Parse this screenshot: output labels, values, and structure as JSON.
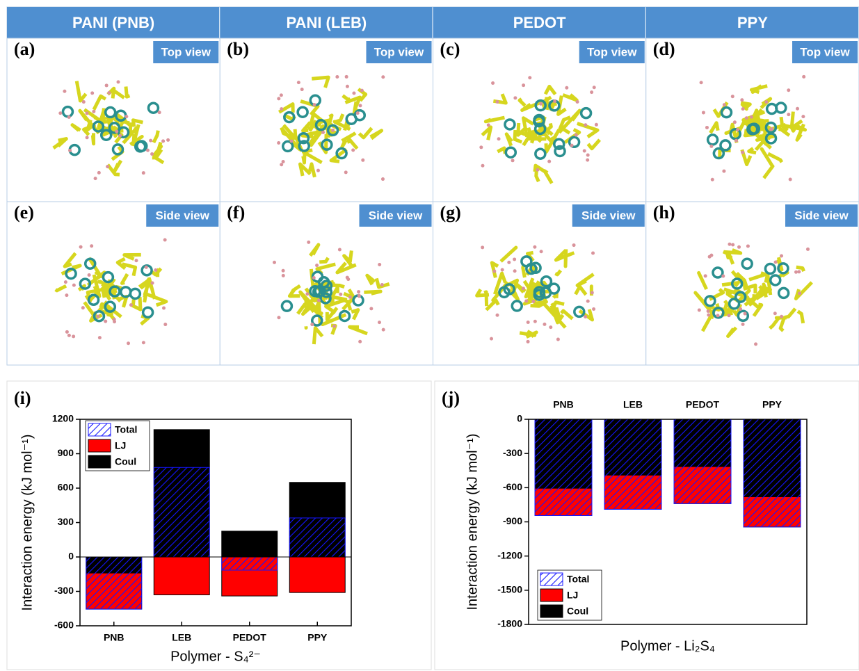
{
  "header": {
    "columns": [
      "PANI (PNB)",
      "PANI (LEB)",
      "PEDOT",
      "PPY"
    ],
    "panels": [
      {
        "label": "(a)",
        "view": "Top view"
      },
      {
        "label": "(b)",
        "view": "Top view"
      },
      {
        "label": "(c)",
        "view": "Top view"
      },
      {
        "label": "(d)",
        "view": "Top view"
      },
      {
        "label": "(e)",
        "view": "Side view"
      },
      {
        "label": "(f)",
        "view": "Side view"
      },
      {
        "label": "(g)",
        "view": "Side view"
      },
      {
        "label": "(h)",
        "view": "Side view"
      }
    ]
  },
  "chart_data": [
    {
      "type": "bar",
      "panel": "(i)",
      "ylabel": "Interaction energy (kJ mol⁻¹)",
      "xlabel": "Polymer - S₄²⁻",
      "categories": [
        "PNB",
        "LEB",
        "PEDOT",
        "PPY"
      ],
      "category_axis": "bottom",
      "legend": "top-left",
      "ylim": [
        -600,
        1200
      ],
      "yticks": [
        -600,
        -300,
        0,
        300,
        600,
        900,
        1200
      ],
      "series": [
        {
          "name": "Total",
          "color": "#1515ff",
          "pattern": "hatch",
          "values": [
            -455,
            780,
            -115,
            340
          ]
        },
        {
          "name": "LJ",
          "color": "#ff0000",
          "values": [
            -315,
            -330,
            -340,
            -310
          ]
        },
        {
          "name": "Coul",
          "color": "#000000",
          "values": [
            -140,
            1110,
            225,
            650
          ]
        }
      ]
    },
    {
      "type": "bar",
      "panel": "(j)",
      "ylabel": "Interaction energy (kJ mol⁻¹)",
      "xlabel": "Polymer - Li₂S₄",
      "categories": [
        "PNB",
        "LEB",
        "PEDOT",
        "PPY"
      ],
      "category_axis": "top",
      "legend": "bottom-left",
      "ylim": [
        -1800,
        0
      ],
      "yticks": [
        -1800,
        -1500,
        -1200,
        -900,
        -600,
        -300,
        0
      ],
      "series": [
        {
          "name": "Total",
          "color": "#1515ff",
          "pattern": "hatch",
          "values": [
            -845,
            -790,
            -740,
            -945
          ]
        },
        {
          "name": "LJ",
          "color": "#ff0000",
          "values": [
            -240,
            -300,
            -325,
            -265
          ]
        },
        {
          "name": "Coul",
          "color": "#000000",
          "values": [
            -605,
            -490,
            -415,
            -680
          ]
        }
      ]
    }
  ]
}
